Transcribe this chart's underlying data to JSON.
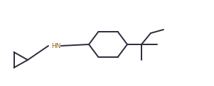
{
  "figsize": [
    3.01,
    1.22
  ],
  "dpi": 100,
  "line_color": "#2b2b3b",
  "hn_color": "#8B6914",
  "bg_color": "#ffffff",
  "line_width": 1.4
}
